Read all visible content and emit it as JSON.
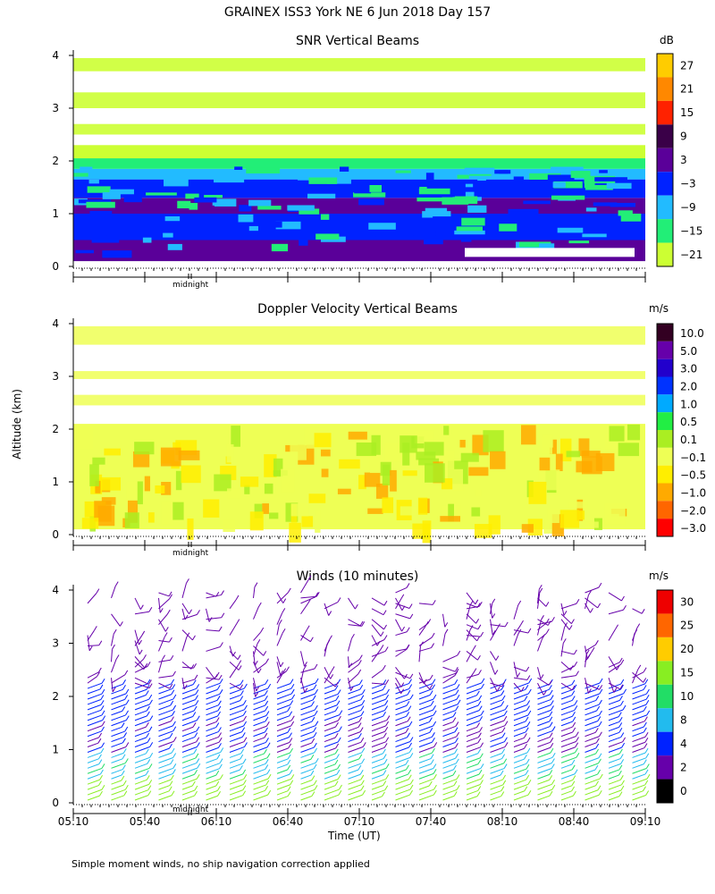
{
  "title": "GRAINEX ISS3 York NE    6 Jun 2018 Day 157",
  "y_axis_label": "Altitude (km)",
  "x_axis_label": "Time (UT)",
  "midnight_label": "midnight",
  "footnote": "Simple moment winds, no ship navigation correction applied",
  "panels": [
    {
      "title": "SNR Vertical Beams",
      "unit": "dB",
      "colorbar_labels": [
        "27",
        "21",
        "15",
        "9",
        "3",
        "−3",
        "−9",
        "−15",
        "−21"
      ],
      "colorbar_colors": [
        "#ffcc00",
        "#ff8800",
        "#ff2200",
        "#3a0048",
        "#5a0099",
        "#0022ff",
        "#22bbff",
        "#22ee77",
        "#ccff33"
      ]
    },
    {
      "title": "Doppler Velocity Vertical Beams",
      "unit": "m/s",
      "colorbar_labels": [
        "10.0",
        "5.0",
        "3.0",
        "2.0",
        "1.0",
        "0.5",
        "0.1",
        "−0.1",
        "−0.5",
        "−1.0",
        "−2.0",
        "−3.0"
      ],
      "colorbar_colors": [
        "#330022",
        "#6600aa",
        "#2200cc",
        "#0033ff",
        "#00aaff",
        "#22ee44",
        "#aaee22",
        "#eeff55",
        "#ffee00",
        "#ffaa00",
        "#ff6600",
        "#ff0000"
      ]
    },
    {
      "title": "Winds (10 minutes)",
      "unit": "m/s",
      "colorbar_labels": [
        "30",
        "25",
        "20",
        "15",
        "10",
        "8",
        "4",
        "2",
        "0"
      ],
      "colorbar_colors": [
        "#ee0000",
        "#ff6600",
        "#ffcc00",
        "#88ee22",
        "#22dd66",
        "#22bbee",
        "#0022ff",
        "#6600aa",
        "#000000"
      ]
    }
  ],
  "chart_data": {
    "type": "heatmap",
    "x": {
      "label": "Time (UT)",
      "ticks": [
        "05:10",
        "05:40",
        "06:10",
        "06:40",
        "07:10",
        "07:40",
        "08:10",
        "08:40",
        "09:10"
      ]
    },
    "y": {
      "label": "Altitude (km)",
      "ticks": [
        "0",
        "1",
        "2",
        "3",
        "4"
      ],
      "range": [
        0,
        4
      ]
    },
    "panels": [
      "SNR Vertical Beams",
      "Doppler Velocity Vertical Beams",
      "Winds (10 minutes)"
    ],
    "units": [
      "dB",
      "m/s",
      "m/s"
    ]
  }
}
